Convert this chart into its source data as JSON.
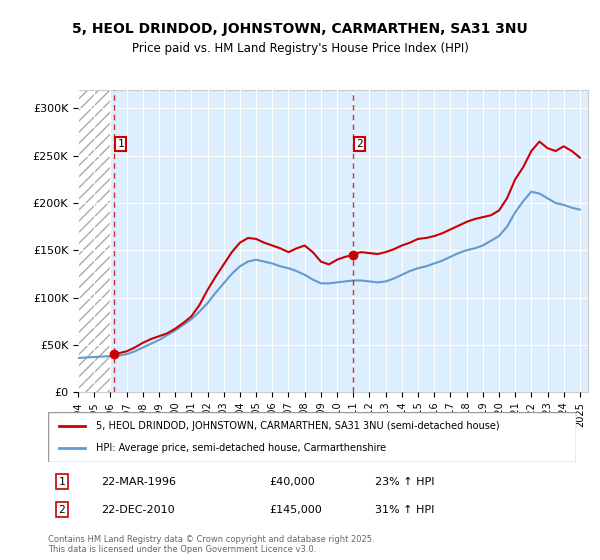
{
  "title": "5, HEOL DRINDOD, JOHNSTOWN, CARMARTHEN, SA31 3NU",
  "subtitle": "Price paid vs. HM Land Registry's House Price Index (HPI)",
  "ylabel_ticks": [
    "£0",
    "£50K",
    "£100K",
    "£150K",
    "£200K",
    "£250K",
    "£300K"
  ],
  "ytick_values": [
    0,
    50000,
    100000,
    150000,
    200000,
    250000,
    300000
  ],
  "ylim": [
    0,
    320000
  ],
  "xlim_start": 1994.0,
  "xlim_end": 2025.5,
  "hatch_end": 1996.0,
  "sale1_x": 1996.23,
  "sale1_y": 40000,
  "sale2_x": 2010.97,
  "sale2_y": 145000,
  "red_line_color": "#cc0000",
  "blue_line_color": "#6699cc",
  "bg_color": "#ddeeff",
  "hatch_color": "#bbbbbb",
  "legend_label1": "5, HEOL DRINDOD, JOHNSTOWN, CARMARTHEN, SA31 3NU (semi-detached house)",
  "legend_label2": "HPI: Average price, semi-detached house, Carmarthenshire",
  "ann1_num": "1",
  "ann1_date": "22-MAR-1996",
  "ann1_price": "£40,000",
  "ann1_hpi": "23% ↑ HPI",
  "ann2_num": "2",
  "ann2_date": "22-DEC-2010",
  "ann2_price": "£145,000",
  "ann2_hpi": "31% ↑ HPI",
  "copyright": "Contains HM Land Registry data © Crown copyright and database right 2025.\nThis data is licensed under the Open Government Licence v3.0.",
  "x_years": [
    1994,
    1995,
    1996,
    1997,
    1998,
    1999,
    2000,
    2001,
    2002,
    2003,
    2004,
    2005,
    2006,
    2007,
    2008,
    2009,
    2010,
    2011,
    2012,
    2013,
    2014,
    2015,
    2016,
    2017,
    2018,
    2019,
    2020,
    2021,
    2022,
    2023,
    2024,
    2025
  ],
  "red_data_x": [
    1996.23,
    1996.5,
    1997.0,
    1997.5,
    1998.0,
    1998.5,
    1999.0,
    1999.5,
    2000.0,
    2000.5,
    2001.0,
    2001.5,
    2002.0,
    2002.5,
    2003.0,
    2003.5,
    2004.0,
    2004.5,
    2005.0,
    2005.5,
    2006.0,
    2006.5,
    2007.0,
    2007.5,
    2008.0,
    2008.5,
    2009.0,
    2009.5,
    2010.0,
    2010.5,
    2010.97,
    2011.0,
    2011.5,
    2012.0,
    2012.5,
    2013.0,
    2013.5,
    2014.0,
    2014.5,
    2015.0,
    2015.5,
    2016.0,
    2016.5,
    2017.0,
    2017.5,
    2018.0,
    2018.5,
    2019.0,
    2019.5,
    2020.0,
    2020.5,
    2021.0,
    2021.5,
    2022.0,
    2022.5,
    2023.0,
    2023.5,
    2024.0,
    2024.5,
    2025.0
  ],
  "red_data_y": [
    40000,
    41000,
    43000,
    47000,
    52000,
    56000,
    59000,
    62000,
    67000,
    73000,
    80000,
    92000,
    108000,
    122000,
    135000,
    148000,
    158000,
    163000,
    162000,
    158000,
    155000,
    152000,
    148000,
    152000,
    155000,
    148000,
    138000,
    135000,
    140000,
    143000,
    145000,
    146000,
    148000,
    147000,
    146000,
    148000,
    151000,
    155000,
    158000,
    162000,
    163000,
    165000,
    168000,
    172000,
    176000,
    180000,
    183000,
    185000,
    187000,
    192000,
    205000,
    225000,
    238000,
    255000,
    265000,
    258000,
    255000,
    260000,
    255000,
    248000
  ],
  "blue_data_x": [
    1994.0,
    1994.5,
    1995.0,
    1995.5,
    1996.0,
    1996.5,
    1997.0,
    1997.5,
    1998.0,
    1998.5,
    1999.0,
    1999.5,
    2000.0,
    2000.5,
    2001.0,
    2001.5,
    2002.0,
    2002.5,
    2003.0,
    2003.5,
    2004.0,
    2004.5,
    2005.0,
    2005.5,
    2006.0,
    2006.5,
    2007.0,
    2007.5,
    2008.0,
    2008.5,
    2009.0,
    2009.5,
    2010.0,
    2010.5,
    2011.0,
    2011.5,
    2012.0,
    2012.5,
    2013.0,
    2013.5,
    2014.0,
    2014.5,
    2015.0,
    2015.5,
    2016.0,
    2016.5,
    2017.0,
    2017.5,
    2018.0,
    2018.5,
    2019.0,
    2019.5,
    2020.0,
    2020.5,
    2021.0,
    2021.5,
    2022.0,
    2022.5,
    2023.0,
    2023.5,
    2024.0,
    2024.5,
    2025.0
  ],
  "blue_data_y": [
    36000,
    36500,
    37000,
    37500,
    38000,
    38500,
    40000,
    43000,
    47000,
    51000,
    55000,
    60000,
    65000,
    71000,
    77000,
    85000,
    94000,
    105000,
    115000,
    125000,
    133000,
    138000,
    140000,
    138000,
    136000,
    133000,
    131000,
    128000,
    124000,
    119000,
    115000,
    115000,
    116000,
    117000,
    118000,
    118000,
    117000,
    116000,
    117000,
    120000,
    124000,
    128000,
    131000,
    133000,
    136000,
    139000,
    143000,
    147000,
    150000,
    152000,
    155000,
    160000,
    165000,
    175000,
    190000,
    202000,
    212000,
    210000,
    205000,
    200000,
    198000,
    195000,
    193000
  ]
}
